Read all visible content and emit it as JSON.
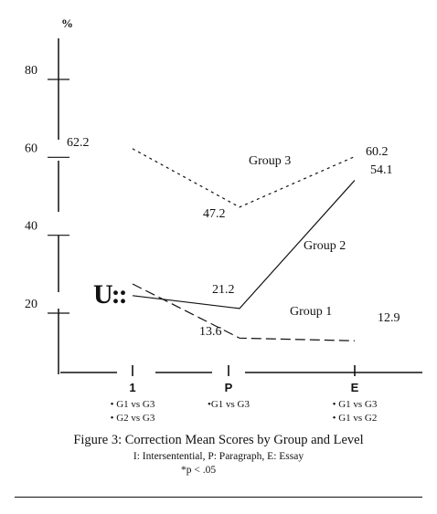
{
  "chart_data": {
    "type": "line",
    "y_unit_label": "%",
    "ylim": [
      0,
      90
    ],
    "y_ticks": [
      20,
      40,
      60,
      80
    ],
    "categories": [
      "1",
      "P",
      "E"
    ],
    "series": [
      {
        "name": "Group 3",
        "values": [
          62.2,
          47.2,
          60.2
        ],
        "value_labels": [
          "62.2",
          "47.2",
          "60.2"
        ],
        "style": "dotted"
      },
      {
        "name": "Group 2",
        "values": [
          24.5,
          21.2,
          54.1
        ],
        "value_labels": [
          "",
          "21.2",
          "54.1"
        ],
        "style": "solid"
      },
      {
        "name": "Group 1",
        "values": [
          27.5,
          13.6,
          12.9
        ],
        "value_labels": [
          "",
          "13.6",
          "12.9"
        ],
        "style": "dashed"
      }
    ],
    "significance": [
      [
        "• G1 vs G3",
        "• G2 vs G3"
      ],
      [
        "•G1 vs G3"
      ],
      [
        "• G1 vs G3",
        "• G1 vs G2"
      ]
    ],
    "legend_marker_text": "U::",
    "grid": false
  },
  "caption": {
    "title": "Figure 3: Correction Mean Scores by Group and Level",
    "legend_line": "I: Intersentential, P: Paragraph, E: Essay",
    "note": "*p < .05"
  }
}
